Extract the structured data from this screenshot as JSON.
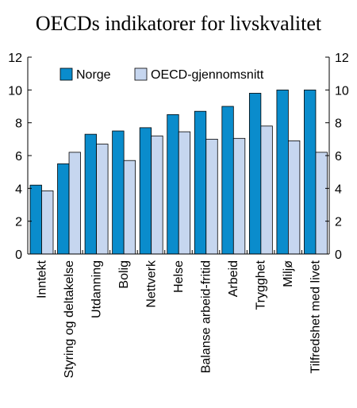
{
  "chart_data": {
    "type": "bar",
    "title": "OECDs indikatorer for livskvalitet",
    "categories": [
      "Inntekt",
      "Styring og deltakelse",
      "Utdanning",
      "Bolig",
      "Nettverk",
      "Helse",
      "Balanse arbeid-fritid",
      "Arbeid",
      "Trygghet",
      "Miljø",
      "Tilfredshet med livet"
    ],
    "series": [
      {
        "name": "Norge",
        "color": "#0a8ccc",
        "values": [
          4.2,
          5.5,
          7.3,
          7.5,
          7.7,
          8.5,
          8.7,
          9.0,
          9.8,
          10.0,
          10.0
        ]
      },
      {
        "name": "OECD-gjennomsnitt",
        "color": "#c6d6ef",
        "values": [
          3.85,
          6.2,
          6.7,
          5.7,
          7.2,
          7.45,
          7.0,
          7.05,
          7.8,
          6.9,
          6.2
        ]
      }
    ],
    "ylim": [
      0,
      12
    ],
    "yticks": [
      0,
      2,
      4,
      6,
      8,
      10,
      12
    ],
    "ytick_labels": [
      "0",
      "2",
      "4",
      "6",
      "8",
      "10",
      "12"
    ],
    "grid": false,
    "legend_position": "top-left"
  }
}
